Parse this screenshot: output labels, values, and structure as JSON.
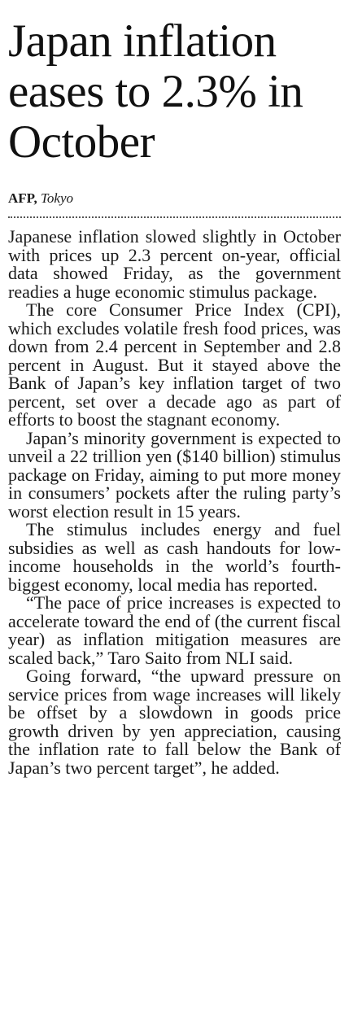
{
  "article": {
    "headline": "Japan inflation eases to 2.3% in October",
    "byline": {
      "agency": "AFP,",
      "location": "Tokyo"
    },
    "paragraphs": [
      "Japanese inflation slowed slightly in October with prices up 2.3 percent on-year, official data showed Friday, as the government readies a huge economic stimulus package.",
      "The core Consumer Price Index (CPI), which excludes volatile fresh food prices, was down from 2.4 percent in September and 2.8 percent in August. But it stayed above the Bank of Japan’s key inflation target of two percent, set over a decade ago as part of efforts to boost the stagnant economy.",
      "Japan’s minority government is expected to unveil a 22 trillion yen ($140 billion) stimulus package on Friday, aiming to put more money in consumers’ pockets after the ruling party’s worst election result in 15 years.",
      "The stimulus includes energy and fuel subsidies as well as cash handouts for low-income households in the world’s fourth-biggest economy, local media has reported.",
      "“The pace of price increases is expected to accelerate toward the end of (the current fiscal year) as inflation mitigation measures are scaled back,” Taro Saito from NLI said.",
      "Going forward, “the upward pressure on service prices from wage increases will likely be offset by a slowdown in goods price growth driven by yen appreciation, causing the inflation rate to fall below the Bank of Japan’s two percent target”, he added."
    ]
  }
}
